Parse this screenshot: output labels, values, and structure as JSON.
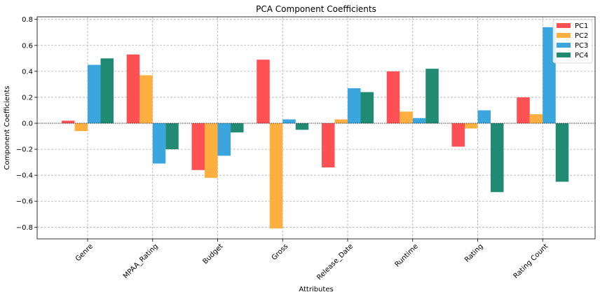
{
  "chart_data": {
    "type": "bar",
    "title": "PCA Component Coefficients",
    "xlabel": "Attributes",
    "ylabel": "Component Coefficients",
    "categories": [
      "Genre",
      "MPAA_Rating",
      "Budget",
      "Gross",
      "Release_Date",
      "Runtime",
      "Rating",
      "Rating Count"
    ],
    "yticks": [
      "−0.8",
      "−0.6",
      "−0.4",
      "−0.2",
      "0.0",
      "0.2",
      "0.4",
      "0.6",
      "0.8"
    ],
    "ylim": [
      -0.89,
      0.82
    ],
    "grid": true,
    "legend_position": "top-right",
    "series": [
      {
        "name": "PC1",
        "color": "#ff5153",
        "values": [
          0.02,
          0.53,
          -0.36,
          0.49,
          -0.34,
          0.4,
          -0.18,
          0.2
        ]
      },
      {
        "name": "PC2",
        "color": "#ffaf3f",
        "values": [
          -0.06,
          0.37,
          -0.42,
          -0.81,
          0.03,
          0.09,
          -0.04,
          0.07
        ]
      },
      {
        "name": "PC3",
        "color": "#3aa6dd",
        "values": [
          0.45,
          -0.31,
          -0.25,
          0.03,
          0.27,
          0.04,
          0.1,
          0.74
        ]
      },
      {
        "name": "PC4",
        "color": "#208a72",
        "values": [
          0.5,
          -0.2,
          -0.07,
          -0.05,
          0.24,
          0.42,
          -0.53,
          -0.45
        ]
      }
    ]
  }
}
